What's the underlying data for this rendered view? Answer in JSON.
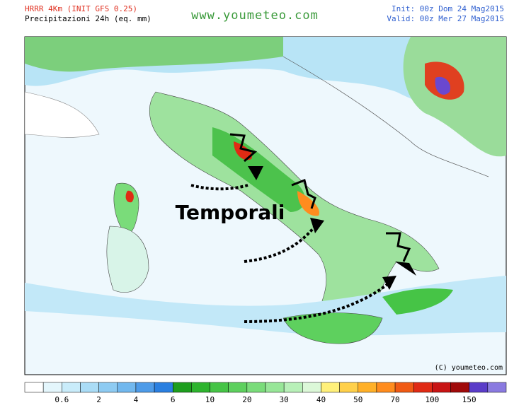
{
  "header": {
    "model": "HRRR 4Km (INIT GFS 0.25)",
    "field": "Precipitazioni 24h (eq. mm)",
    "site": "www.youmeteo.com",
    "init": "Init: 00z Dom 24 Mag2015",
    "valid": "Valid: 00z Mer 27 Mag2015"
  },
  "map": {
    "annotation": "Temporali",
    "copyright": "(C) youmeteo.com"
  },
  "colorbar": {
    "labels": [
      "0.6",
      "2",
      "4",
      "6",
      "10",
      "20",
      "30",
      "40",
      "50",
      "70",
      "100",
      "150"
    ],
    "colors": [
      "#ffffff",
      "#e4f6fc",
      "#c9ecfa",
      "#aadcf6",
      "#8ecbf2",
      "#72b8ee",
      "#4e9be8",
      "#2a7fe0",
      "#1e9e1e",
      "#2eb42e",
      "#46c446",
      "#5ed05e",
      "#7adc7a",
      "#98e698",
      "#b8f0b8",
      "#dcf8d8",
      "#fff07a",
      "#ffd04a",
      "#ffb028",
      "#ff8c1e",
      "#f05a14",
      "#e02a14",
      "#c81414",
      "#a00a0a",
      "#5a3cc8",
      "#8a7ae0"
    ]
  }
}
